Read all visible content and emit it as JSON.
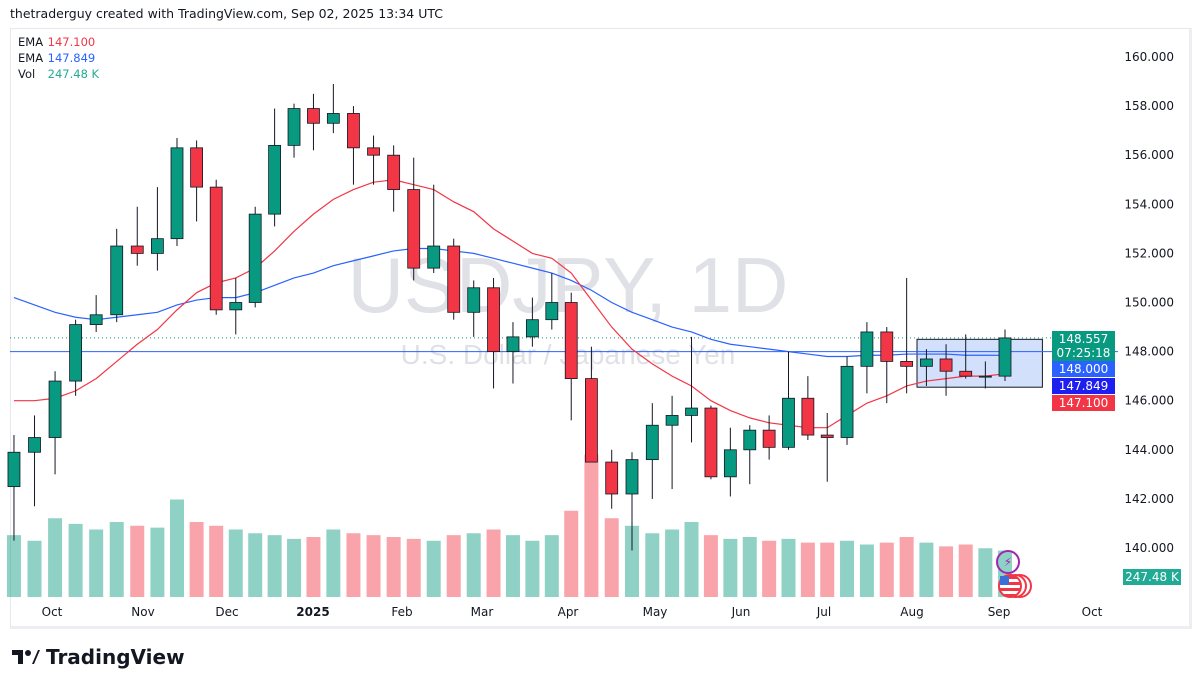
{
  "header": {
    "attribution": "thetraderguy created with TradingView.com, Sep 02, 2025 13:34 UTC"
  },
  "legend": [
    {
      "label": "EMA",
      "value": "147.100",
      "color": "#f23645"
    },
    {
      "label": "EMA",
      "value": "147.849",
      "color": "#2962ff"
    },
    {
      "label": "Vol",
      "value": "247.48 K",
      "color": "#22ab94"
    }
  ],
  "watermark": {
    "symbol": "USDJPY, 1D",
    "name": "U.S. Dollar / Japanese Yen"
  },
  "price_tags": {
    "last": "148.557",
    "countdown": "07:25:18",
    "line": "148.000",
    "ema200": "147.849",
    "ema50": "147.100",
    "volume": "247.48 K"
  },
  "colors": {
    "up": "#089981",
    "down": "#f23645",
    "ema50": "#f23645",
    "ema200": "#2962ff",
    "hline": "#2962ff",
    "box": "#c8d8fb"
  },
  "footer": {
    "brand": "TradingView"
  },
  "chart_data": {
    "type": "candlestick",
    "symbol": "USDJPY",
    "interval": "1D (shown aggregated weekly)",
    "ylim": [
      139,
      161
    ],
    "y_ticks": [
      "160.000",
      "158.000",
      "156.000",
      "154.000",
      "152.000",
      "150.000",
      "148.000",
      "146.000",
      "144.000",
      "142.000",
      "140.000"
    ],
    "x_ticks": [
      "Oct",
      "Nov",
      "Dec",
      "2025",
      "Feb",
      "Mar",
      "Apr",
      "May",
      "Jun",
      "Jul",
      "Aug",
      "Sep",
      "Oct"
    ],
    "dates": [
      "2024-09-16",
      "2024-09-23",
      "2024-09-30",
      "2024-10-07",
      "2024-10-14",
      "2024-10-21",
      "2024-10-28",
      "2024-11-04",
      "2024-11-11",
      "2024-11-18",
      "2024-11-25",
      "2024-12-02",
      "2024-12-09",
      "2024-12-16",
      "2024-12-23",
      "2024-12-30",
      "2025-01-06",
      "2025-01-13",
      "2025-01-20",
      "2025-01-27",
      "2025-02-03",
      "2025-02-10",
      "2025-02-17",
      "2025-02-24",
      "2025-03-03",
      "2025-03-10",
      "2025-03-17",
      "2025-03-24",
      "2025-03-31",
      "2025-04-07",
      "2025-04-14",
      "2025-04-21",
      "2025-04-28",
      "2025-05-05",
      "2025-05-12",
      "2025-05-19",
      "2025-05-26",
      "2025-06-02",
      "2025-06-09",
      "2025-06-16",
      "2025-06-23",
      "2025-06-30",
      "2025-07-07",
      "2025-07-14",
      "2025-07-21",
      "2025-07-28",
      "2025-08-04",
      "2025-08-11",
      "2025-08-18",
      "2025-08-25",
      "2025-09-01"
    ],
    "ohlc": [
      [
        142.5,
        144.6,
        140.3,
        143.9
      ],
      [
        143.9,
        145.4,
        141.7,
        144.5
      ],
      [
        144.5,
        147.2,
        143.0,
        146.8
      ],
      [
        146.8,
        149.3,
        146.2,
        149.1
      ],
      [
        149.1,
        150.3,
        148.8,
        149.5
      ],
      [
        149.5,
        153.0,
        149.2,
        152.3
      ],
      [
        152.3,
        153.9,
        151.5,
        152.0
      ],
      [
        152.0,
        154.7,
        151.3,
        152.6
      ],
      [
        152.6,
        156.7,
        152.3,
        156.3
      ],
      [
        156.3,
        156.6,
        153.3,
        154.7
      ],
      [
        154.7,
        155.0,
        149.5,
        149.7
      ],
      [
        149.7,
        151.0,
        148.7,
        150.0
      ],
      [
        150.0,
        153.9,
        149.8,
        153.6
      ],
      [
        153.6,
        157.9,
        153.1,
        156.4
      ],
      [
        156.4,
        158.1,
        155.9,
        157.9
      ],
      [
        157.9,
        158.5,
        156.2,
        157.3
      ],
      [
        157.3,
        158.9,
        156.9,
        157.7
      ],
      [
        157.7,
        158.0,
        154.8,
        156.3
      ],
      [
        156.3,
        156.8,
        154.8,
        156.0
      ],
      [
        156.0,
        156.4,
        153.7,
        154.6
      ],
      [
        154.6,
        155.9,
        150.9,
        151.4
      ],
      [
        151.4,
        154.8,
        151.2,
        152.3
      ],
      [
        152.3,
        152.6,
        149.3,
        149.6
      ],
      [
        149.6,
        150.9,
        148.6,
        150.6
      ],
      [
        150.6,
        151.0,
        146.5,
        148.0
      ],
      [
        148.0,
        149.2,
        146.7,
        148.6
      ],
      [
        148.6,
        150.2,
        148.2,
        149.3
      ],
      [
        149.3,
        151.2,
        148.9,
        150.0
      ],
      [
        150.0,
        150.4,
        145.2,
        146.9
      ],
      [
        146.9,
        148.2,
        143.5,
        143.5
      ],
      [
        143.5,
        144.0,
        141.6,
        142.2
      ],
      [
        142.2,
        143.9,
        139.9,
        143.6
      ],
      [
        143.6,
        145.9,
        142.0,
        145.0
      ],
      [
        145.0,
        146.2,
        142.4,
        145.4
      ],
      [
        145.4,
        148.6,
        144.3,
        145.7
      ],
      [
        145.7,
        145.8,
        142.8,
        142.9
      ],
      [
        142.9,
        144.9,
        142.1,
        144.0
      ],
      [
        144.0,
        145.0,
        142.6,
        144.8
      ],
      [
        144.8,
        145.4,
        143.6,
        144.1
      ],
      [
        144.1,
        148.0,
        144.0,
        146.1
      ],
      [
        146.1,
        147.0,
        144.4,
        144.6
      ],
      [
        144.6,
        145.5,
        142.7,
        144.5
      ],
      [
        144.5,
        147.8,
        144.2,
        147.4
      ],
      [
        147.4,
        149.2,
        146.3,
        148.8
      ],
      [
        148.8,
        149.0,
        145.9,
        147.6
      ],
      [
        147.6,
        151.0,
        146.3,
        147.4
      ],
      [
        147.4,
        148.1,
        146.6,
        147.7
      ],
      [
        147.7,
        148.3,
        146.2,
        147.2
      ],
      [
        147.2,
        148.7,
        146.9,
        147.0
      ],
      [
        147.0,
        147.6,
        146.5,
        147.0
      ],
      [
        147.0,
        148.9,
        146.8,
        148.557
      ]
    ],
    "volume_k": [
      330,
      300,
      420,
      390,
      360,
      400,
      380,
      370,
      520,
      400,
      380,
      360,
      340,
      330,
      310,
      320,
      360,
      340,
      330,
      320,
      310,
      300,
      330,
      340,
      360,
      330,
      300,
      330,
      460,
      760,
      420,
      380,
      340,
      360,
      400,
      330,
      310,
      320,
      300,
      310,
      290,
      290,
      300,
      280,
      290,
      320,
      290,
      270,
      280,
      260,
      247.48
    ],
    "ema50": [
      146.0,
      146.0,
      146.1,
      146.4,
      146.9,
      147.6,
      148.3,
      148.9,
      149.7,
      150.4,
      150.8,
      151.0,
      151.4,
      152.1,
      152.9,
      153.6,
      154.2,
      154.6,
      154.9,
      155.0,
      154.8,
      154.6,
      154.1,
      153.7,
      153.0,
      152.5,
      152.0,
      151.8,
      151.2,
      150.1,
      149.0,
      148.1,
      147.5,
      147.0,
      146.6,
      146.0,
      145.6,
      145.3,
      145.1,
      145.0,
      144.9,
      144.9,
      145.4,
      145.9,
      146.2,
      146.6,
      146.8,
      146.9,
      147.0,
      147.0,
      147.1
    ],
    "ema200": [
      150.2,
      149.9,
      149.6,
      149.4,
      149.3,
      149.4,
      149.5,
      149.6,
      149.9,
      150.1,
      150.2,
      150.2,
      150.4,
      150.7,
      151.0,
      151.2,
      151.5,
      151.7,
      151.9,
      152.1,
      152.2,
      152.2,
      152.1,
      152.0,
      151.8,
      151.6,
      151.4,
      151.2,
      150.9,
      150.5,
      150.0,
      149.6,
      149.3,
      149.0,
      148.8,
      148.5,
      148.3,
      148.2,
      148.1,
      148.0,
      147.9,
      147.8,
      147.8,
      147.85,
      147.85,
      147.9,
      147.9,
      147.9,
      147.85,
      147.85,
      147.849
    ],
    "horizontal_line": 148.0,
    "last_price": 148.557,
    "range_box": {
      "from": "2025-08-01",
      "to": "2025-09-15",
      "top": 148.5,
      "bottom": 146.55
    }
  }
}
